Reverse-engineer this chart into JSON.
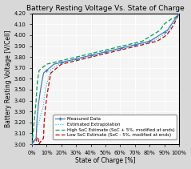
{
  "title": "Battery Resting Voltage Vs. State of Charge",
  "xlabel": "State of Charge [%]",
  "ylabel": "Battery Resting Voltage [V/Cell]",
  "xlim": [
    0,
    1.0
  ],
  "ylim": [
    3.0,
    4.2
  ],
  "yticks": [
    3.0,
    3.1,
    3.2,
    3.3,
    3.4,
    3.5,
    3.6,
    3.7,
    3.8,
    3.9,
    4.0,
    4.1,
    4.2
  ],
  "xticks": [
    0.0,
    0.1,
    0.2,
    0.3,
    0.4,
    0.5,
    0.6,
    0.7,
    0.8,
    0.9,
    1.0
  ],
  "xtick_labels": [
    "0%",
    "10%",
    "20%",
    "30%",
    "40%",
    "50%",
    "60%",
    "70%",
    "80%",
    "90%",
    "100%"
  ],
  "background_color": "#f5f5f5",
  "fig_background_color": "#d8d8d8",
  "line_measured_color": "#4472C4",
  "line_extrap_color": "#00CCCC",
  "line_high_color": "#00A050",
  "line_low_color": "#CC0000",
  "legend_labels": [
    "Measured Data",
    "Estimated Extrapolation",
    "High SoC Estimate (SoC + 5%, modified at ends)",
    "Low SoC Estimate (SoC - 5%, modified at ends)"
  ],
  "title_fontsize": 6.5,
  "axis_label_fontsize": 5.5,
  "tick_fontsize": 4.8,
  "legend_fontsize": 4.0
}
